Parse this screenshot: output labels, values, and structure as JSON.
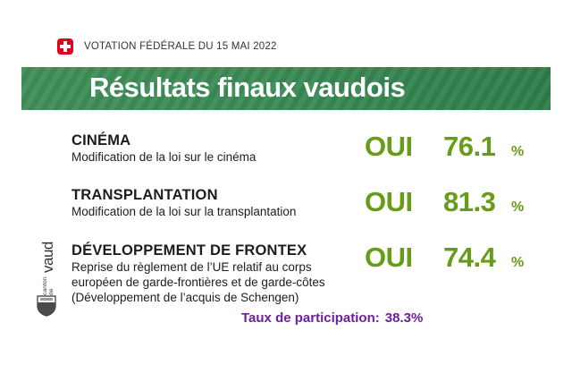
{
  "header": {
    "date_label": "VOTATION FÉDÉRALE DU 15 MAI 2022",
    "flag_icon": "swiss-flag-icon"
  },
  "banner": {
    "title": "Résultats finaux vaudois"
  },
  "items": [
    {
      "title": "CINÉMA",
      "description": [
        "Modification de la loi sur le cinéma"
      ],
      "answer": "OUI",
      "value": "76.1",
      "unit": "%"
    },
    {
      "title": "TRANSPLANTATION",
      "description": [
        "Modification de la loi sur la transplantation"
      ],
      "answer": "OUI",
      "value": "81.3",
      "unit": "%"
    },
    {
      "title": "DÉVELOPPEMENT DE FRONTEX",
      "description": [
        "Reprise du règlement de l’UE relatif au corps",
        "européen de garde-frontières et de garde-côtes",
        "(Développement de l’acquis de Schengen)"
      ],
      "answer": "OUI",
      "value": "74.4",
      "unit": "%"
    }
  ],
  "logo": {
    "small": "canton de",
    "big": "vaud"
  },
  "participation": {
    "label": "Taux de participation:",
    "rate": "38.3%"
  },
  "colors": {
    "result_green": "#669c17",
    "banner_green": "#3a8a55",
    "participation_purple": "#6e1ea0",
    "flag_red": "#e3001b"
  }
}
